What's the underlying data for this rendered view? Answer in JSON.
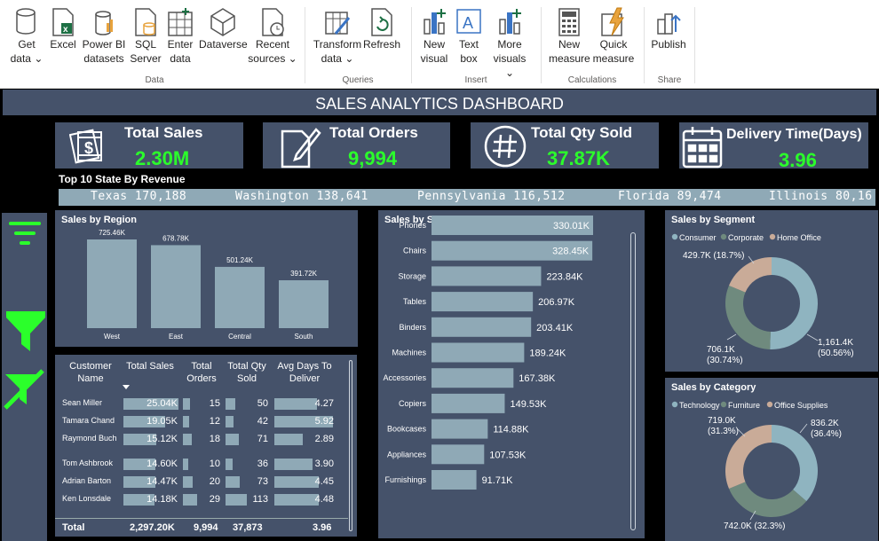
{
  "ribbon": {
    "buttons": [
      {
        "name": "get-data-button",
        "label": "Get\ndata ⌄",
        "icon": "database-icon"
      },
      {
        "name": "excel-button",
        "label": "Excel",
        "icon": "excel-icon"
      },
      {
        "name": "power-bi-datasets-button",
        "label": "Power BI\ndatasets",
        "icon": "dataset-icon"
      },
      {
        "name": "sql-server-button",
        "label": "SQL\nServer",
        "icon": "sql-icon"
      },
      {
        "name": "enter-data-button",
        "label": "Enter\ndata",
        "icon": "table-icon"
      },
      {
        "name": "dataverse-button",
        "label": "Dataverse",
        "icon": "dataverse-icon"
      },
      {
        "name": "recent-sources-button",
        "label": "Recent\nsources ⌄",
        "icon": "clock-icon"
      },
      {
        "name": "transform-data-button",
        "label": "Transform\ndata ⌄",
        "icon": "transform-icon"
      },
      {
        "name": "refresh-button",
        "label": "Refresh",
        "icon": "refresh-icon"
      },
      {
        "name": "new-visual-button",
        "label": "New\nvisual",
        "icon": "chart-icon"
      },
      {
        "name": "text-box-button",
        "label": "Text\nbox",
        "icon": "textbox-icon"
      },
      {
        "name": "more-visuals-button",
        "label": "More\nvisuals ⌄",
        "icon": "chart-icon"
      },
      {
        "name": "new-measure-button",
        "label": "New\nmeasure",
        "icon": "calculator-icon"
      },
      {
        "name": "quick-measure-button",
        "label": "Quick\nmeasure",
        "icon": "lightning-icon"
      },
      {
        "name": "publish-button",
        "label": "Publish",
        "icon": "publish-icon"
      }
    ],
    "groups": [
      "Data",
      "Queries",
      "Insert",
      "Calculations",
      "Share"
    ]
  },
  "dashboard": {
    "title": "SALES ANALYTICS DASHBOARD",
    "kpis": [
      {
        "title": "Total Sales",
        "value": "2.30M",
        "icon": "money-icon"
      },
      {
        "title": "Total Orders",
        "value": "9,994",
        "icon": "pen-paper-icon"
      },
      {
        "title": "Total Qty Sold",
        "value": "37.87K",
        "icon": "hashtag-icon"
      },
      {
        "title": "Delivery Time(Days)",
        "value": "3.96",
        "icon": "calendar-icon"
      }
    ],
    "ticker_title": "Top 10 State By Revenue",
    "ticker": [
      "Texas 170,188",
      "Washington 138,641",
      "Pennsylvania 116,512",
      "Florida 89,474",
      "Illinois 80,16"
    ],
    "accent_green": "#2bff2b",
    "panel_color": "#45526a",
    "bar_color": "#8fa9b6"
  },
  "region_chart": {
    "title": "Sales by Region",
    "chart_data": {
      "type": "bar",
      "categories": [
        "West",
        "East",
        "Central",
        "South"
      ],
      "values": [
        725.46,
        678.78,
        501.24,
        391.72
      ],
      "labels": [
        "725.46K",
        "678.78K",
        "501.24K",
        "391.72K"
      ]
    }
  },
  "subcat_chart": {
    "title": "Sales by Sub-Category",
    "chart_data": {
      "type": "bar",
      "categories": [
        "Phones",
        "Chairs",
        "Storage",
        "Tables",
        "Binders",
        "Machines",
        "Accessories",
        "Copiers",
        "Bookcases",
        "Appliances",
        "Furnishings"
      ],
      "values": [
        330.01,
        328.45,
        223.84,
        206.97,
        203.41,
        189.24,
        167.38,
        149.53,
        114.88,
        107.53,
        91.71
      ],
      "labels": [
        "330.01K",
        "328.45K",
        "223.84K",
        "206.97K",
        "203.41K",
        "189.24K",
        "167.38K",
        "149.53K",
        "114.88K",
        "107.53K",
        "91.71K"
      ]
    }
  },
  "segment_chart": {
    "title": "Sales by Segment",
    "legend": [
      "Consumer",
      "Corporate",
      "Home Office"
    ],
    "colors": [
      "#8fb4c0",
      "#6f8a7e",
      "#c9ab98"
    ],
    "chart_data": {
      "type": "pie",
      "categories": [
        "Consumer",
        "Corporate",
        "Home Office"
      ],
      "values": [
        50.56,
        30.74,
        18.7
      ]
    },
    "labels": [
      {
        "a": "1,161.4K",
        "b": "(50.56%)"
      },
      {
        "a": "706.1K",
        "b": "(30.74%)"
      },
      {
        "a": "429.7K (18.7%)",
        "b": ""
      }
    ]
  },
  "category_chart": {
    "title": "Sales by Category",
    "legend": [
      "Technology",
      "Furniture",
      "Office Supplies"
    ],
    "colors": [
      "#8fb4c0",
      "#6f8a7e",
      "#c9ab98"
    ],
    "chart_data": {
      "type": "pie",
      "categories": [
        "Technology",
        "Furniture",
        "Office Supplies"
      ],
      "values": [
        36.4,
        32.3,
        31.3
      ]
    },
    "labels": [
      {
        "a": "836.2K",
        "b": "(36.4%)"
      },
      {
        "a": "742.0K (32.3%)",
        "b": ""
      },
      {
        "a": "719.0K",
        "b": "(31.3%)"
      }
    ]
  },
  "table": {
    "headers": [
      "Customer\nName",
      "Total Sales",
      "Total\nOrders",
      "Total Qty\nSold",
      "Avg Days To\nDeliver"
    ],
    "sort_icon": "sort-descending-icon",
    "rows": [
      {
        "name": "Sean Miller",
        "sales": "25.04K",
        "sales_v": 25.04,
        "orders": "15",
        "orders_v": 15,
        "qty": "50",
        "qty_v": 50,
        "days": "4.27",
        "days_v": 4.27
      },
      {
        "name": "Tamara Chand",
        "sales": "19.05K",
        "sales_v": 19.05,
        "orders": "12",
        "orders_v": 12,
        "qty": "42",
        "qty_v": 42,
        "days": "5.92",
        "days_v": 5.92
      },
      {
        "name": "Raymond Buch",
        "sales": "15.12K",
        "sales_v": 15.12,
        "orders": "18",
        "orders_v": 18,
        "qty": "71",
        "qty_v": 71,
        "days": "2.89",
        "days_v": 2.89
      },
      {
        "name": "Tom Ashbrook",
        "sales": "14.60K",
        "sales_v": 14.6,
        "orders": "10",
        "orders_v": 10,
        "qty": "36",
        "qty_v": 36,
        "days": "3.90",
        "days_v": 3.9
      },
      {
        "name": "Adrian Barton",
        "sales": "14.47K",
        "sales_v": 14.47,
        "orders": "20",
        "orders_v": 20,
        "qty": "73",
        "qty_v": 73,
        "days": "4.45",
        "days_v": 4.45
      },
      {
        "name": "Ken Lonsdale",
        "sales": "14.18K",
        "sales_v": 14.18,
        "orders": "29",
        "orders_v": 29,
        "qty": "113",
        "qty_v": 113,
        "days": "4.48",
        "days_v": 4.48
      }
    ],
    "total": {
      "label": "Total",
      "sales": "2,297.20K",
      "orders": "9,994",
      "qty": "37,873",
      "days": "3.96"
    }
  }
}
